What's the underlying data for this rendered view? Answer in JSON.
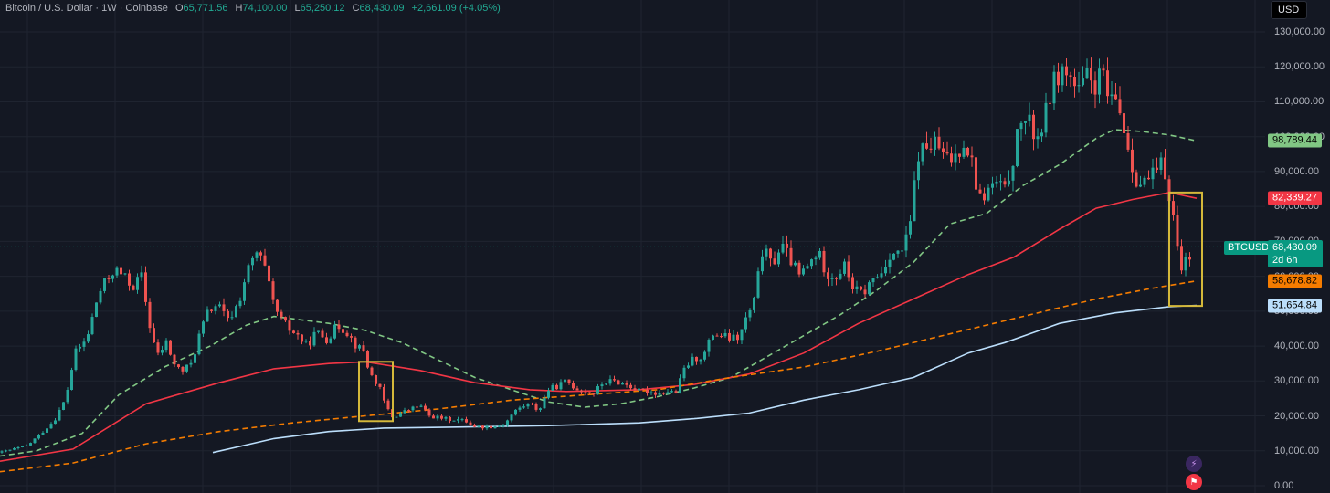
{
  "header": {
    "symbol": "Bitcoin / U.S. Dollar · 1W · Coinbase",
    "open_key": "O",
    "open": "65,771.56",
    "high_key": "H",
    "high": "74,100.00",
    "low_key": "L",
    "low": "65,250.12",
    "close_key": "C",
    "close": "68,430.09",
    "change": "+2,661.09 (+4.05%)"
  },
  "currency": "USD",
  "symbol_tag": "BTCUSD",
  "last_price": {
    "value": "68,430.09",
    "countdown": "2d 6h"
  },
  "ma_tags": [
    {
      "value": "98,789.44",
      "num": 98789.44,
      "bg": "#81c784",
      "fg": "#000000"
    },
    {
      "value": "82,339.27",
      "num": 82339.27,
      "bg": "#f23645",
      "fg": "#ffffff"
    },
    {
      "value": "58,678.82",
      "num": 58678.82,
      "bg": "#f57c00",
      "fg": "#000000"
    },
    {
      "value": "51,654.84",
      "num": 51654.84,
      "bg": "#bbdefb",
      "fg": "#000000"
    }
  ],
  "colors": {
    "up": "#26a69a",
    "down": "#ef5350",
    "background": "#141823",
    "grid": "#1f2430",
    "box": "#d4b83a"
  },
  "chart_data": {
    "type": "candlestick",
    "y_ticks": [
      "130,000.00",
      "120,000.00",
      "110,000.00",
      "100,000.00",
      "90,000.00",
      "80,000.00",
      "70,000.00",
      "60,000.00",
      "50,000.00",
      "40,000.00",
      "30,000.00",
      "20,000.00",
      "10,000.00",
      "0.00"
    ],
    "y_tick_values": [
      130000,
      120000,
      110000,
      100000,
      90000,
      80000,
      70000,
      60000,
      50000,
      40000,
      30000,
      20000,
      10000,
      0
    ],
    "ylim": [
      0,
      132000
    ],
    "ohlc_points": [
      [
        0,
        9500
      ],
      [
        15,
        10500
      ],
      [
        30,
        11500
      ],
      [
        45,
        15000
      ],
      [
        60,
        19000
      ],
      [
        72,
        25000
      ],
      [
        82,
        38000
      ],
      [
        95,
        42000
      ],
      [
        108,
        55000
      ],
      [
        115,
        58000
      ],
      [
        125,
        62000
      ],
      [
        135,
        60000
      ],
      [
        145,
        57000
      ],
      [
        155,
        60000
      ],
      [
        163,
        47000
      ],
      [
        172,
        37000
      ],
      [
        182,
        41000
      ],
      [
        192,
        34000
      ],
      [
        200,
        33000
      ],
      [
        210,
        35000
      ],
      [
        218,
        43000
      ],
      [
        228,
        50000
      ],
      [
        238,
        52000
      ],
      [
        250,
        47000
      ],
      [
        262,
        53000
      ],
      [
        270,
        61000
      ],
      [
        282,
        67000
      ],
      [
        290,
        62000
      ],
      [
        298,
        53000
      ],
      [
        306,
        48000
      ],
      [
        316,
        45000
      ],
      [
        326,
        43000
      ],
      [
        336,
        40000
      ],
      [
        346,
        44000
      ],
      [
        358,
        42000
      ],
      [
        370,
        46000
      ],
      [
        380,
        44000
      ],
      [
        390,
        40000
      ],
      [
        398,
        38500
      ],
      [
        405,
        32000
      ],
      [
        414,
        29000
      ],
      [
        422,
        23000
      ],
      [
        430,
        19500
      ],
      [
        440,
        21000
      ],
      [
        450,
        22000
      ],
      [
        460,
        23000
      ],
      [
        470,
        20000
      ],
      [
        480,
        19500
      ],
      [
        490,
        19000
      ],
      [
        500,
        19000
      ],
      [
        510,
        18500
      ],
      [
        520,
        17000
      ],
      [
        530,
        16800
      ],
      [
        542,
        17000
      ],
      [
        552,
        17500
      ],
      [
        562,
        21000
      ],
      [
        570,
        22500
      ],
      [
        580,
        23500
      ],
      [
        590,
        21500
      ],
      [
        600,
        27500
      ],
      [
        610,
        28500
      ],
      [
        620,
        30000
      ],
      [
        630,
        28000
      ],
      [
        640,
        27000
      ],
      [
        650,
        26500
      ],
      [
        660,
        29500
      ],
      [
        670,
        30000
      ],
      [
        680,
        29500
      ],
      [
        690,
        28500
      ],
      [
        700,
        27000
      ],
      [
        710,
        27000
      ],
      [
        720,
        26500
      ],
      [
        730,
        27000
      ],
      [
        740,
        26800
      ],
      [
        750,
        34000
      ],
      [
        760,
        36500
      ],
      [
        770,
        37000
      ],
      [
        780,
        43500
      ],
      [
        790,
        43000
      ],
      [
        800,
        42000
      ],
      [
        810,
        42500
      ],
      [
        815,
        47000
      ],
      [
        825,
        52000
      ],
      [
        835,
        68000
      ],
      [
        845,
        63000
      ],
      [
        855,
        69000
      ],
      [
        865,
        65000
      ],
      [
        875,
        60000
      ],
      [
        885,
        63000
      ],
      [
        895,
        67000
      ],
      [
        905,
        61000
      ],
      [
        915,
        60000
      ],
      [
        925,
        63000
      ],
      [
        935,
        56000
      ],
      [
        945,
        55000
      ],
      [
        955,
        59000
      ],
      [
        965,
        61000
      ],
      [
        975,
        67000
      ],
      [
        985,
        66000
      ],
      [
        995,
        72000
      ],
      [
        1005,
        95000
      ],
      [
        1015,
        97000
      ],
      [
        1025,
        98000
      ],
      [
        1035,
        93000
      ],
      [
        1045,
        94000
      ],
      [
        1055,
        99000
      ],
      [
        1063,
        94000
      ],
      [
        1072,
        82000
      ],
      [
        1080,
        84000
      ],
      [
        1090,
        87000
      ],
      [
        1100,
        84000
      ],
      [
        1110,
        95000
      ],
      [
        1118,
        105000
      ],
      [
        1125,
        104000
      ],
      [
        1135,
        100000
      ],
      [
        1143,
        104000
      ],
      [
        1150,
        113000
      ],
      [
        1160,
        119000
      ],
      [
        1170,
        118000
      ],
      [
        1180,
        112000
      ],
      [
        1190,
        117000
      ],
      [
        1200,
        115000
      ],
      [
        1208,
        118000
      ],
      [
        1215,
        108000
      ],
      [
        1222,
        111000
      ],
      [
        1230,
        103000
      ],
      [
        1236,
        96000
      ],
      [
        1242,
        89000
      ],
      [
        1250,
        86000
      ],
      [
        1258,
        88000
      ],
      [
        1265,
        89000
      ],
      [
        1272,
        92000
      ],
      [
        1278,
        87000
      ],
      [
        1284,
        78000
      ],
      [
        1288,
        70000
      ],
      [
        1293,
        63000
      ],
      [
        1300,
        65000
      ],
      [
        1305,
        68430
      ]
    ],
    "moving_averages": [
      {
        "style": "dashed",
        "color": "#81c784",
        "points": [
          [
            0,
            8500
          ],
          [
            40,
            10000
          ],
          [
            90,
            15000
          ],
          [
            130,
            26000
          ],
          [
            180,
            34000
          ],
          [
            230,
            40000
          ],
          [
            270,
            46000
          ],
          [
            300,
            48500
          ],
          [
            330,
            47500
          ],
          [
            360,
            46500
          ],
          [
            400,
            44500
          ],
          [
            440,
            41000
          ],
          [
            480,
            36000
          ],
          [
            520,
            31000
          ],
          [
            560,
            27500
          ],
          [
            600,
            24000
          ],
          [
            640,
            22500
          ],
          [
            680,
            23500
          ],
          [
            720,
            25500
          ],
          [
            760,
            28000
          ],
          [
            800,
            31000
          ],
          [
            840,
            37000
          ],
          [
            880,
            43000
          ],
          [
            920,
            49000
          ],
          [
            960,
            56000
          ],
          [
            1000,
            64000
          ],
          [
            1040,
            75000
          ],
          [
            1080,
            78000
          ],
          [
            1120,
            86000
          ],
          [
            1160,
            92000
          ],
          [
            1200,
            99500
          ],
          [
            1220,
            102000
          ],
          [
            1250,
            101500
          ],
          [
            1280,
            100500
          ],
          [
            1310,
            98789.44
          ]
        ]
      },
      {
        "style": "solid",
        "color": "#f23645",
        "points": [
          [
            0,
            7000
          ],
          [
            80,
            10500
          ],
          [
            160,
            23500
          ],
          [
            240,
            29500
          ],
          [
            300,
            33500
          ],
          [
            360,
            35000
          ],
          [
            400,
            35500
          ],
          [
            460,
            33000
          ],
          [
            520,
            29500
          ],
          [
            580,
            27500
          ],
          [
            620,
            27000
          ],
          [
            700,
            27500
          ],
          [
            760,
            29000
          ],
          [
            820,
            32000
          ],
          [
            880,
            38000
          ],
          [
            940,
            46500
          ],
          [
            1000,
            53500
          ],
          [
            1060,
            60500
          ],
          [
            1110,
            65500
          ],
          [
            1160,
            73500
          ],
          [
            1200,
            79500
          ],
          [
            1240,
            82000
          ],
          [
            1280,
            84000
          ],
          [
            1310,
            82339.27
          ]
        ]
      },
      {
        "style": "dashed",
        "color": "#f57c00",
        "points": [
          [
            0,
            4000
          ],
          [
            80,
            6500
          ],
          [
            160,
            12000
          ],
          [
            240,
            15500
          ],
          [
            320,
            18000
          ],
          [
            400,
            20000
          ],
          [
            480,
            22000
          ],
          [
            560,
            24500
          ],
          [
            640,
            26000
          ],
          [
            720,
            27500
          ],
          [
            800,
            31000
          ],
          [
            880,
            34000
          ],
          [
            960,
            38500
          ],
          [
            1040,
            43500
          ],
          [
            1120,
            48500
          ],
          [
            1200,
            53500
          ],
          [
            1260,
            56500
          ],
          [
            1310,
            58678.82
          ]
        ]
      },
      {
        "style": "solid",
        "color": "#bbdefb",
        "points": [
          [
            233,
            9500
          ],
          [
            300,
            13500
          ],
          [
            360,
            15500
          ],
          [
            420,
            16500
          ],
          [
            500,
            16800
          ],
          [
            600,
            17200
          ],
          [
            700,
            18000
          ],
          [
            760,
            19200
          ],
          [
            820,
            20800
          ],
          [
            880,
            24500
          ],
          [
            940,
            27500
          ],
          [
            1000,
            31000
          ],
          [
            1060,
            38000
          ],
          [
            1100,
            41000
          ],
          [
            1160,
            46500
          ],
          [
            1220,
            49500
          ],
          [
            1280,
            51300
          ],
          [
            1310,
            51654.84
          ]
        ]
      }
    ],
    "highlight_boxes": [
      {
        "x_range": [
          393,
          430
        ],
        "y_range": [
          18500,
          35500
        ]
      },
      {
        "x_range": [
          1280,
          1316
        ],
        "y_range": [
          51500,
          84000
        ]
      }
    ]
  }
}
